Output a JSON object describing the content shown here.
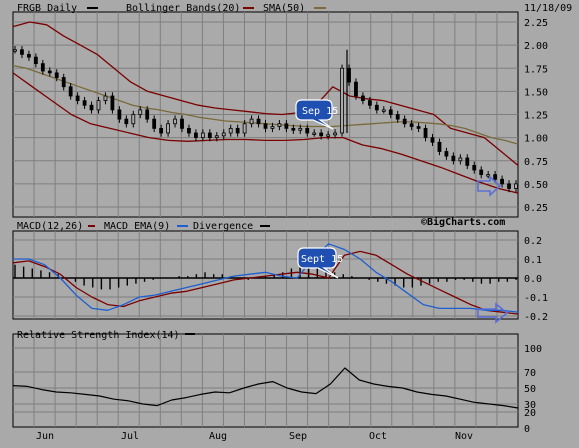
{
  "colors": {
    "background": "#a9a9a9",
    "panel": "#aaaaaa",
    "grid": "#7f7f7f",
    "price": "#000000",
    "bollinger": "#7a0000",
    "sma": "#7a6a3a",
    "macd": "#7a0000",
    "macd_ema": "#1e5fd0",
    "divergence": "#000000",
    "rsi": "#000000",
    "callout_fill": "#1f4fb0",
    "arrow": "#5a6fd6"
  },
  "header": {
    "date": "11/18/09"
  },
  "chart_data": [
    {
      "type": "candlestick",
      "panel": "price",
      "legend": [
        {
          "label": "FRGB Daily",
          "style": "black"
        },
        {
          "label": "Bollinger Bands(20)",
          "style": "darkred"
        },
        {
          "label": "SMA(50)",
          "style": "tan"
        }
      ],
      "y_ticks": [
        "2.25",
        "2.00",
        "1.75",
        "1.50",
        "1.25",
        "1.00",
        "0.75",
        "0.50",
        "0.25"
      ],
      "ylim": [
        0.25,
        2.25
      ],
      "x_ticks": [
        "Jun",
        "Jul",
        "Aug",
        "Sep",
        "Oct",
        "Nov"
      ],
      "watermark": "©BigCharts.com",
      "annotation": "Sep 15",
      "close_series": [
        1.95,
        1.9,
        1.87,
        1.8,
        1.72,
        1.7,
        1.65,
        1.55,
        1.45,
        1.4,
        1.35,
        1.3,
        1.4,
        1.45,
        1.3,
        1.2,
        1.15,
        1.25,
        1.3,
        1.2,
        1.1,
        1.05,
        1.15,
        1.2,
        1.1,
        1.05,
        1.0,
        1.05,
        1.0,
        1.02,
        1.05,
        1.1,
        1.05,
        1.15,
        1.2,
        1.15,
        1.1,
        1.12,
        1.15,
        1.1,
        1.08,
        1.1,
        1.05,
        1.05,
        1.02,
        1.03,
        1.05,
        1.75,
        1.6,
        1.45,
        1.4,
        1.35,
        1.3,
        1.3,
        1.25,
        1.2,
        1.15,
        1.12,
        1.1,
        1.0,
        0.95,
        0.85,
        0.8,
        0.75,
        0.78,
        0.7,
        0.65,
        0.6,
        0.6,
        0.55,
        0.5,
        0.45,
        0.5
      ],
      "sma50": [
        1.78,
        1.75,
        1.7,
        1.65,
        1.6,
        1.55,
        1.5,
        1.45,
        1.4,
        1.35,
        1.32,
        1.3,
        1.27,
        1.25,
        1.22,
        1.2,
        1.18,
        1.17,
        1.16,
        1.15,
        1.14,
        1.13,
        1.12,
        1.12,
        1.12,
        1.13,
        1.14,
        1.15,
        1.16,
        1.17,
        1.17,
        1.16,
        1.15,
        1.13,
        1.1,
        1.05,
        1.0,
        0.97,
        0.93
      ],
      "bollinger_upper": [
        2.2,
        2.25,
        2.22,
        2.1,
        2.0,
        1.9,
        1.75,
        1.6,
        1.5,
        1.45,
        1.4,
        1.35,
        1.32,
        1.3,
        1.28,
        1.26,
        1.25,
        1.27,
        1.35,
        1.55,
        1.45,
        1.42,
        1.4,
        1.35,
        1.3,
        1.25,
        1.1,
        1.05,
        1.0,
        0.85,
        0.7
      ],
      "bollinger_lower": [
        1.7,
        1.55,
        1.4,
        1.25,
        1.15,
        1.1,
        1.05,
        1.0,
        0.97,
        0.96,
        0.97,
        0.98,
        0.98,
        0.97,
        0.97,
        0.98,
        1.0,
        1.0,
        0.92,
        0.88,
        0.82,
        0.75,
        0.68,
        0.6,
        0.52,
        0.45,
        0.4
      ]
    },
    {
      "type": "line",
      "panel": "macd",
      "legend": [
        {
          "label": "MACD(12,26)",
          "style": "darkred"
        },
        {
          "label": "MACD EMA(9)",
          "style": "blue"
        },
        {
          "label": "Divergence",
          "style": "black"
        }
      ],
      "y_ticks": [
        "0.2",
        "0.1",
        "0.0",
        "-0.1",
        "-0.2"
      ],
      "ylim": [
        -0.25,
        0.25
      ],
      "annotation": "Sept 15",
      "series": [
        {
          "name": "MACD(12,26)",
          "values": [
            0.08,
            0.09,
            0.06,
            0.02,
            -0.05,
            -0.1,
            -0.14,
            -0.15,
            -0.12,
            -0.1,
            -0.08,
            -0.07,
            -0.05,
            -0.03,
            -0.01,
            0.0,
            0.01,
            0.02,
            0.03,
            0.02,
            0.0,
            0.12,
            0.14,
            0.12,
            0.07,
            0.02,
            -0.02,
            -0.06,
            -0.1,
            -0.14,
            -0.17,
            -0.18,
            -0.19
          ]
        },
        {
          "name": "MACD EMA(9)",
          "values": [
            0.1,
            0.1,
            0.07,
            0.0,
            -0.09,
            -0.16,
            -0.17,
            -0.14,
            -0.1,
            -0.09,
            -0.07,
            -0.05,
            -0.03,
            -0.01,
            0.01,
            0.02,
            0.03,
            0.01,
            0.0,
            0.1,
            0.18,
            0.15,
            0.1,
            0.03,
            -0.02,
            -0.08,
            -0.14,
            -0.16,
            -0.16,
            -0.16,
            -0.17,
            -0.17,
            -0.18
          ]
        }
      ],
      "divergence": [
        0.07,
        0.06,
        0.05,
        0.04,
        0.03,
        0.02,
        0.0,
        -0.02,
        -0.04,
        -0.05,
        -0.06,
        -0.06,
        -0.05,
        -0.04,
        -0.03,
        -0.02,
        -0.01,
        0.0,
        0.0,
        0.01,
        0.01,
        0.02,
        0.03,
        0.02,
        0.02,
        0.01,
        0.0,
        -0.01,
        0.0,
        0.01,
        0.02,
        0.03,
        0.05,
        0.06,
        0.06,
        0.05,
        0.04,
        0.03,
        0.02,
        0.01,
        0.0,
        -0.01,
        -0.02,
        -0.03,
        -0.04,
        -0.05,
        -0.05,
        -0.04,
        -0.03,
        -0.02,
        -0.02,
        -0.01,
        -0.01,
        -0.02,
        -0.03,
        -0.03,
        -0.02,
        -0.02,
        -0.01
      ]
    },
    {
      "type": "line",
      "panel": "rsi",
      "legend": [
        {
          "label": "Relative Strength Index(14)",
          "style": "black"
        }
      ],
      "y_ticks": [
        "100",
        "70",
        "50",
        "30",
        "20",
        "0"
      ],
      "ylim": [
        0,
        100
      ],
      "series": [
        {
          "name": "Relative Strength Index(14)",
          "values": [
            53,
            52,
            48,
            45,
            44,
            42,
            40,
            36,
            34,
            30,
            28,
            35,
            38,
            42,
            45,
            44,
            50,
            55,
            58,
            50,
            45,
            43,
            55,
            75,
            60,
            55,
            52,
            50,
            45,
            42,
            40,
            36,
            32,
            30,
            28,
            25
          ]
        }
      ]
    }
  ]
}
